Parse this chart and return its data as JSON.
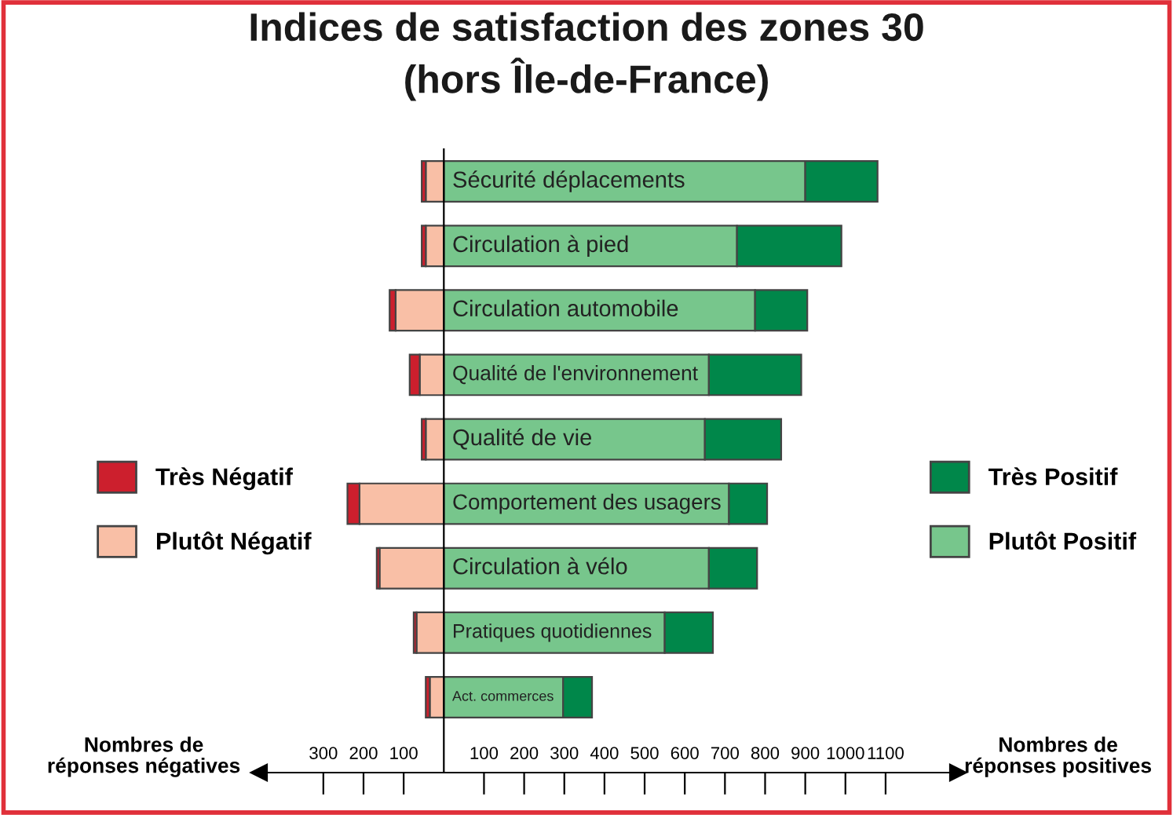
{
  "chart_data": {
    "type": "bar",
    "orientation": "horizontal",
    "stacked": true,
    "title": "Indices de satisfaction des zones 30\n(hors Île-de-France)",
    "categories": [
      "Sécurité déplacements",
      "Circulation à pied",
      "Circulation automobile",
      "Qualité de l'environnement",
      "Qualité de vie",
      "Comportement des usagers",
      "Circulation à vélo",
      "Pratiques quotidiennes",
      "Act. commerces"
    ],
    "series": [
      {
        "name": "Plutôt Négatif",
        "color": "#f9bfa6",
        "values": [
          -45,
          -45,
          -120,
          -60,
          -45,
          -210,
          -160,
          -68,
          -35
        ]
      },
      {
        "name": "Très Négatif",
        "color": "#cc1f2d",
        "values": [
          -10,
          -10,
          -15,
          -25,
          -10,
          -30,
          -7,
          -7,
          -10
        ]
      },
      {
        "name": "Plutôt Positif",
        "color": "#77c68c",
        "values": [
          900,
          730,
          775,
          660,
          650,
          710,
          660,
          550,
          297
        ]
      },
      {
        "name": "Très Positif",
        "color": "#00874a",
        "values": [
          180,
          260,
          130,
          230,
          190,
          95,
          120,
          120,
          72
        ]
      }
    ],
    "xlim": [
      -460,
      1280
    ],
    "xticks": [
      {
        "value": -300,
        "label": "300"
      },
      {
        "value": -200,
        "label": "200"
      },
      {
        "value": -100,
        "label": "100"
      },
      100,
      200,
      300,
      400,
      500,
      600,
      700,
      800,
      900,
      1000,
      1100
    ],
    "annotations": [
      "Nombres de\nréponses négatives",
      "Nombres de\nréponses positives"
    ],
    "legend": "left",
    "grid": false
  }
}
